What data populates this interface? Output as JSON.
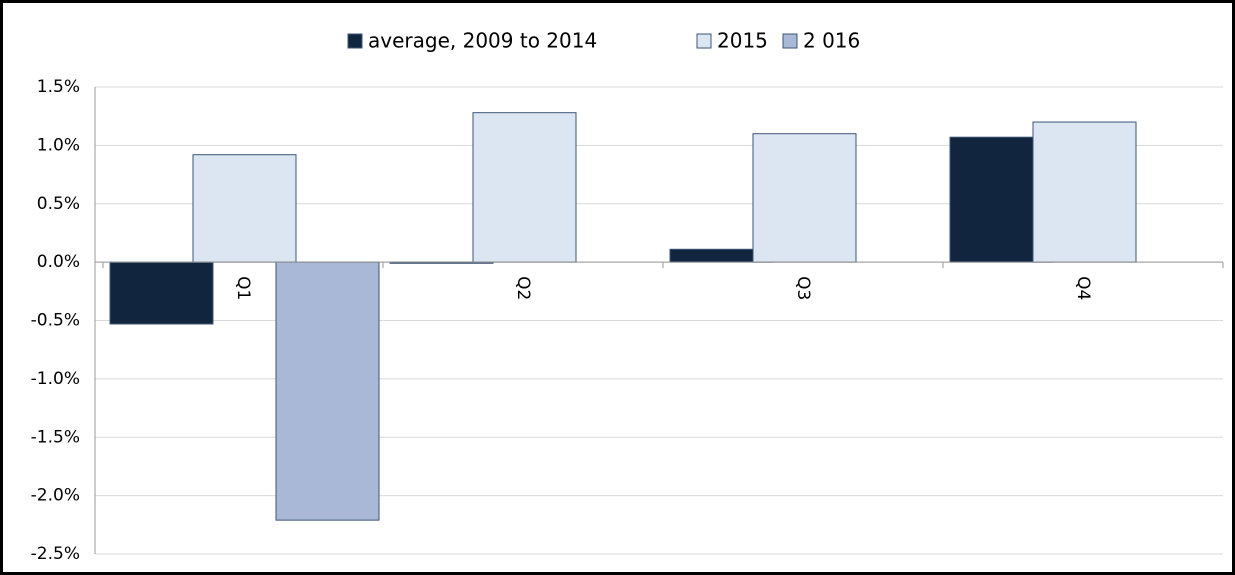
{
  "chart_data": {
    "type": "bar",
    "categories": [
      "Q1",
      "Q2",
      "Q3",
      "Q4"
    ],
    "series": [
      {
        "name": "average, 2009 to 2014",
        "color": "#12253f",
        "values": [
          -0.53,
          -0.01,
          0.11,
          1.07
        ]
      },
      {
        "name": "2015",
        "color": "#dce6f2",
        "values": [
          0.92,
          1.28,
          1.1,
          1.2
        ]
      },
      {
        "name": "2 016",
        "color": "#a9b8d6",
        "values": [
          -2.21,
          null,
          null,
          null
        ]
      }
    ],
    "ylim": [
      -2.5,
      1.5
    ],
    "yticks": [
      {
        "value": 1.5,
        "label": "1.5%"
      },
      {
        "value": 1.0,
        "label": "1.0%"
      },
      {
        "value": 0.5,
        "label": "0.5%"
      },
      {
        "value": 0.0,
        "label": "0.0%"
      },
      {
        "value": -0.5,
        "label": "-0.5%"
      },
      {
        "value": -1.0,
        "label": "-1.0%"
      },
      {
        "value": -1.5,
        "label": "-1.5%"
      },
      {
        "value": -2.0,
        "label": "-2.0%"
      },
      {
        "value": -2.5,
        "label": "-2.5%"
      }
    ],
    "grid": true,
    "legend": "top"
  }
}
